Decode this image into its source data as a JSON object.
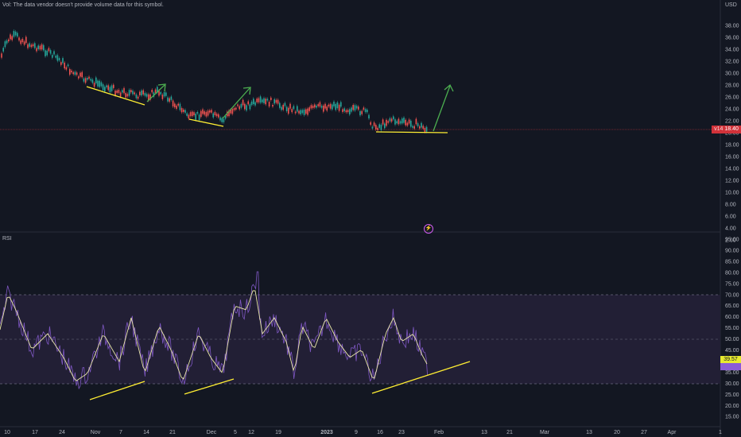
{
  "volume_note": "Vol: The data vendor doesn't provide volume data for this symbol.",
  "currency": "USD",
  "rsi_label": "RSI",
  "last_price": "18.40",
  "last_price_prefix": "v14",
  "rsi_value_1": "39.57",
  "rsi_value_2": "",
  "replay_icon": "lightning-icon",
  "colors": {
    "background": "#131722",
    "up": "#26a69a",
    "down": "#ef5350",
    "rsi_line": "#7e57c2",
    "rsi_ma": "#e8e6a8",
    "rsi_band": "#2a2540",
    "trend_yellow": "#ffee33",
    "arrow_green": "#4caf50"
  },
  "price_axis": [
    "38.00",
    "36.00",
    "34.00",
    "32.00",
    "30.00",
    "28.00",
    "26.00",
    "24.00",
    "22.00",
    "20.00",
    "18.00",
    "16.00",
    "14.00",
    "12.00",
    "10.00",
    "8.00",
    "6.00",
    "4.00",
    "2.00"
  ],
  "rsi_axis": [
    "95.00",
    "90.00",
    "85.00",
    "80.00",
    "75.00",
    "70.00",
    "65.00",
    "60.00",
    "55.00",
    "50.00",
    "45.00",
    "40.00",
    "35.00",
    "30.00",
    "25.00",
    "20.00",
    "15.00"
  ],
  "time_axis": [
    "10",
    "17",
    "24",
    "Nov",
    "7",
    "14",
    "21",
    "Dec",
    "5",
    "12",
    "19",
    "2023",
    "9",
    "16",
    "23",
    "Feb",
    "13",
    "21",
    "Mar",
    "13",
    "20",
    "27",
    "Apr",
    "1"
  ]
}
